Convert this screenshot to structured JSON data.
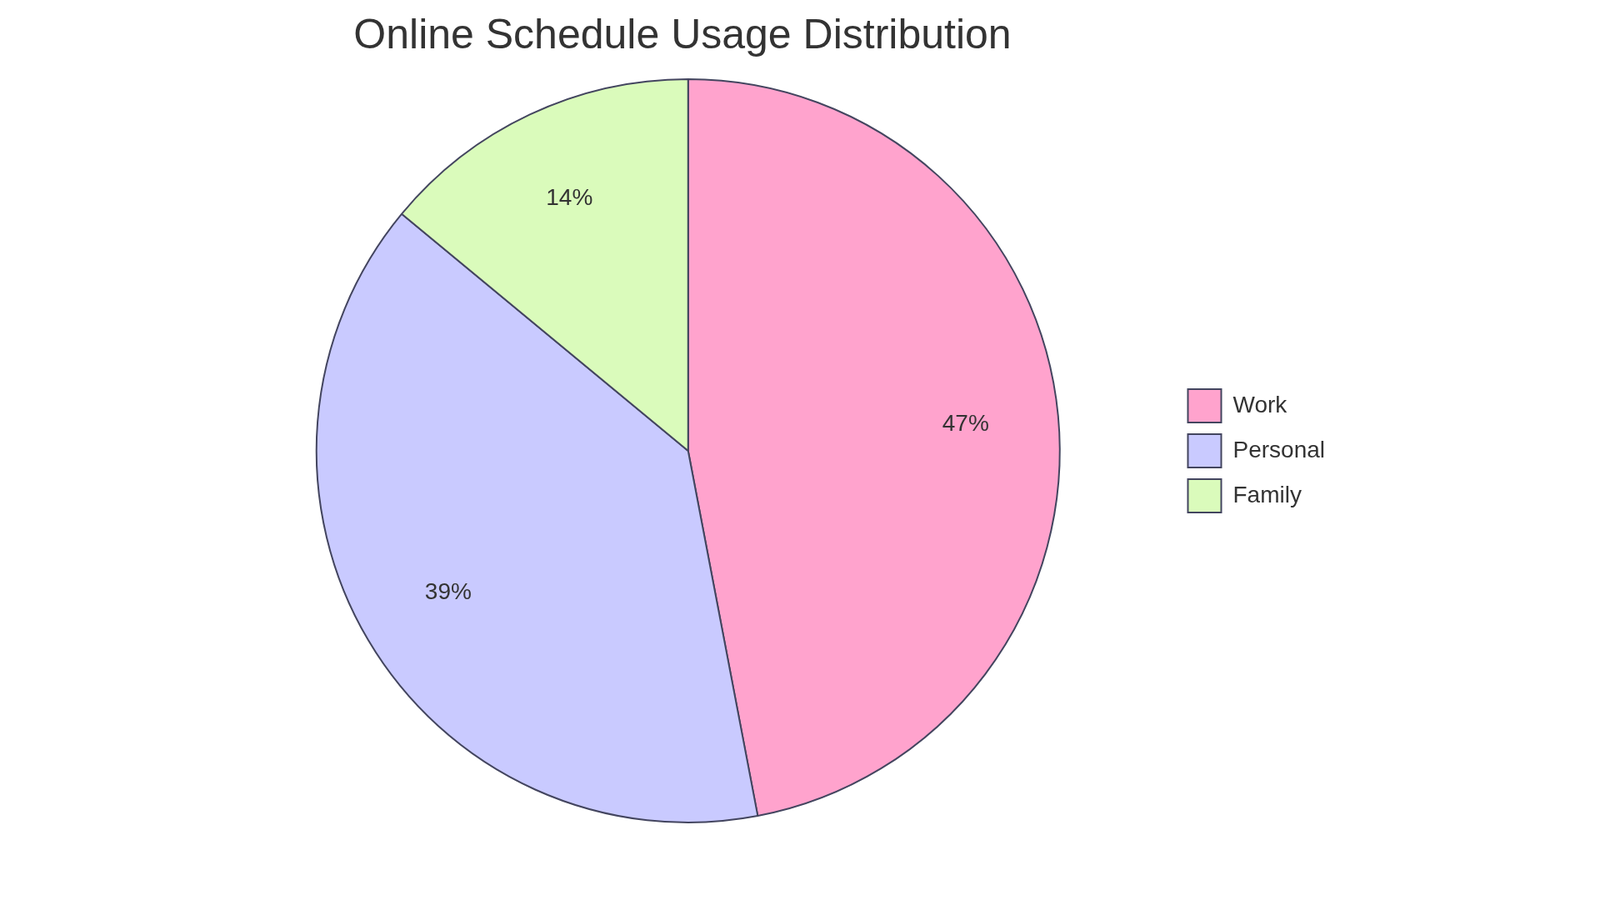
{
  "chart_data": {
    "type": "pie",
    "title": "Online Schedule Usage Distribution",
    "categories": [
      "Work",
      "Personal",
      "Family"
    ],
    "values": [
      47,
      39,
      14
    ],
    "value_labels": [
      "47%",
      "39%",
      "14%"
    ],
    "colors": [
      "#ffa3cd",
      "#c9caff",
      "#dafbbb"
    ],
    "legend": "right",
    "data_labels": true
  }
}
